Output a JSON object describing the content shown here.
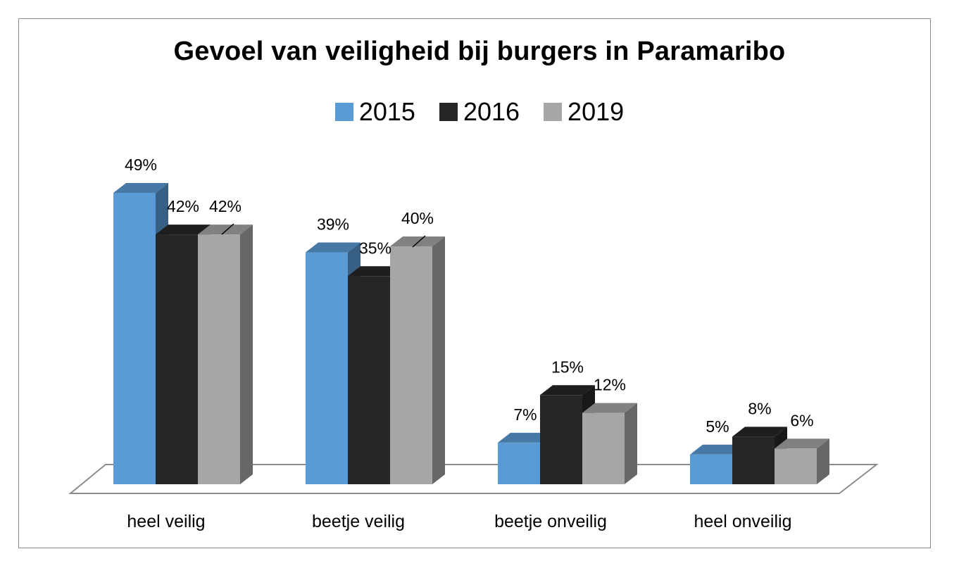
{
  "chart_data": {
    "type": "bar",
    "title": "Gevoel van veiligheid bij burgers in Paramaribo",
    "categories": [
      "heel veilig",
      "beetje veilig",
      "beetje onveilig",
      "heel onveilig"
    ],
    "series": [
      {
        "name": "2015",
        "values": [
          49,
          39,
          7,
          5
        ],
        "labels": [
          "49%",
          "39%",
          "7%",
          "5%"
        ],
        "color": "#5b9bd5"
      },
      {
        "name": "2016",
        "values": [
          42,
          35,
          15,
          8
        ],
        "labels": [
          "42%",
          "35%",
          "15%",
          "8%"
        ],
        "color": "#262626"
      },
      {
        "name": "2019",
        "values": [
          42,
          40,
          12,
          6
        ],
        "labels": [
          "42%",
          "40%",
          "12%",
          "6%"
        ],
        "color": "#a6a6a6"
      }
    ],
    "legend_position": "top",
    "grid": false,
    "style": "3d-clustered-column"
  }
}
